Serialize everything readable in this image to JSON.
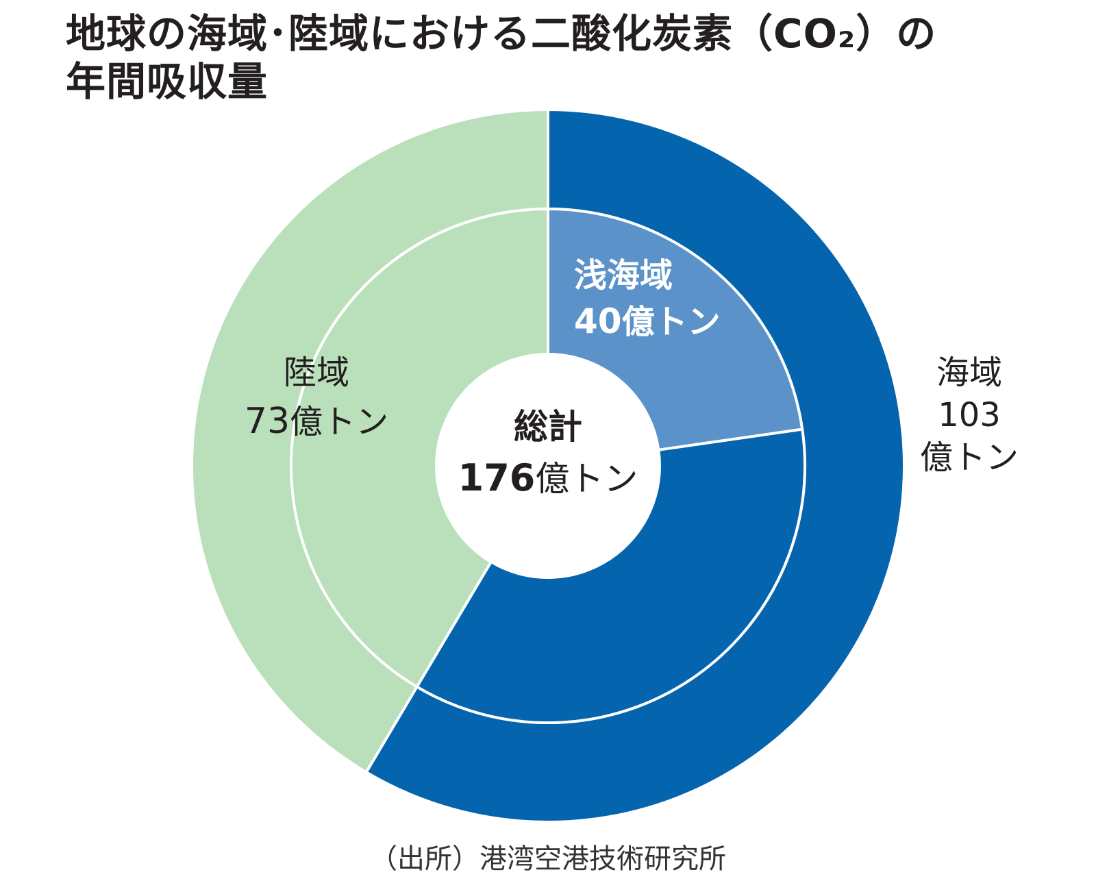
{
  "chart_data": {
    "type": "pie",
    "subtype": "nested-donut",
    "title_lines": [
      "地球の海域･陸域における二酸化炭素（CO₂）の",
      "年間吸収量"
    ],
    "center_label": {
      "name": "総計",
      "value": "176",
      "unit": "億トン"
    },
    "outer_ring": [
      {
        "id": "sea",
        "name": "海域",
        "value": 103,
        "value_text": "103",
        "unit": "億トン",
        "color": "#0564ae"
      },
      {
        "id": "land",
        "name": "陸域",
        "value": 73,
        "value_text": "73",
        "unit": "億トン",
        "color": "#b9dfbb"
      }
    ],
    "inner_ring": [
      {
        "id": "shallow",
        "name": "浅海域",
        "value": 40,
        "value_text": "40",
        "unit": "億トン",
        "color": "#5b92c9"
      },
      {
        "id": "other_sea",
        "name": "",
        "value": 63,
        "color": "#0564ae"
      }
    ],
    "total": 176,
    "source": "（出所）港湾空港技術研究所"
  }
}
